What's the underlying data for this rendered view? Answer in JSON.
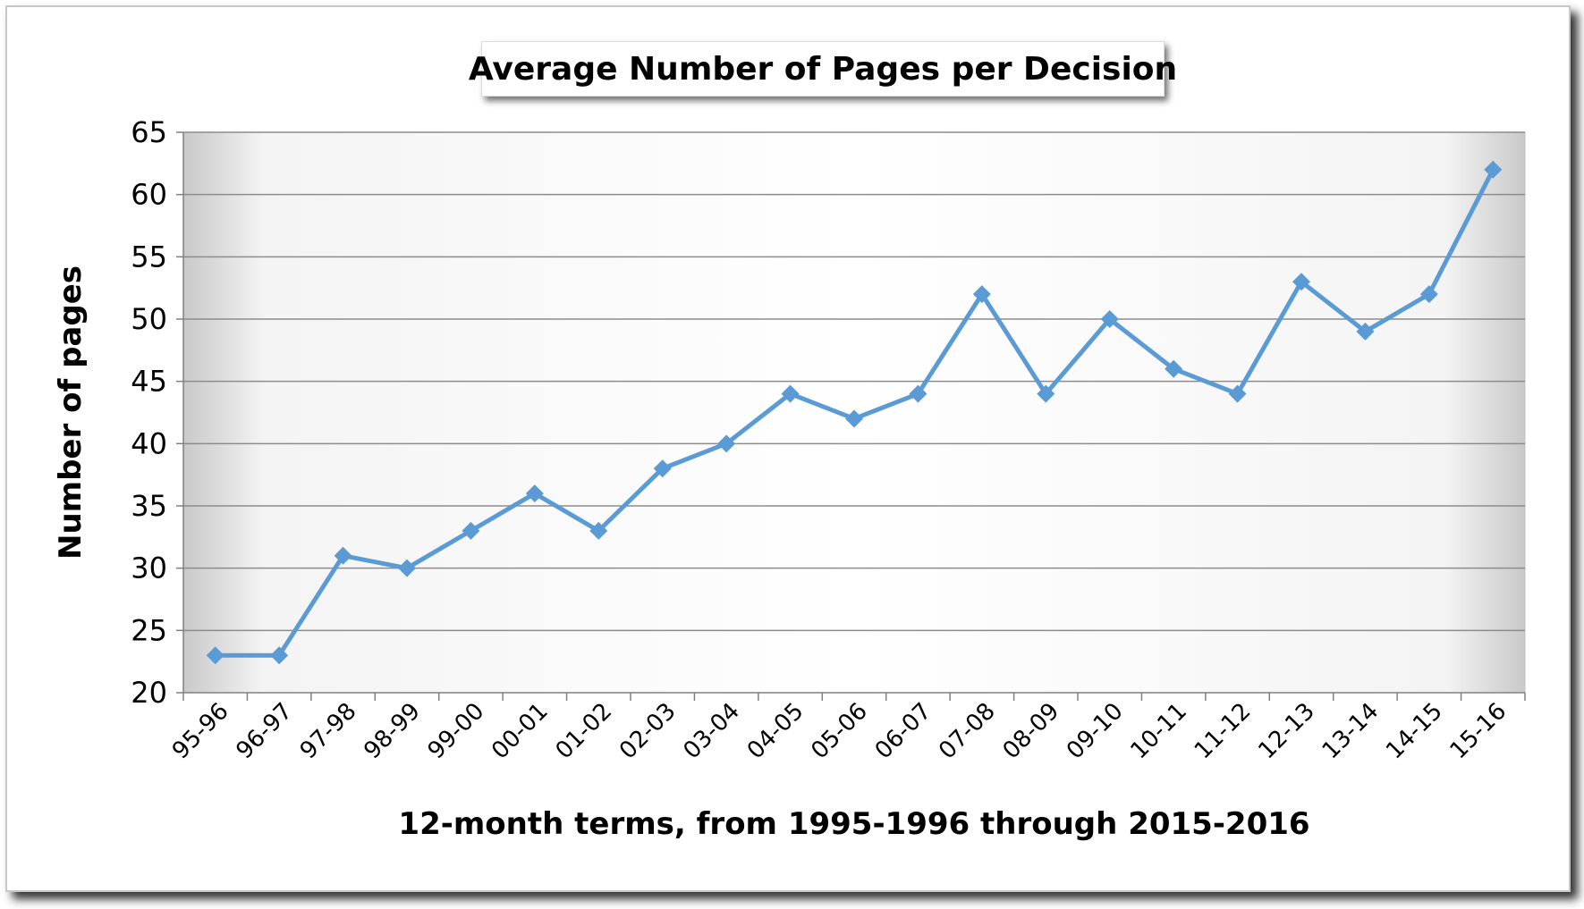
{
  "chart_data": {
    "type": "line",
    "title": "Average Number of Pages per Decision",
    "xlabel": "12-month terms, from 1995-1996 through 2015-2016",
    "ylabel": "Number of pages",
    "categories": [
      "95-96",
      "96-97",
      "97-98",
      "98-99",
      "99-00",
      "00-01",
      "01-02",
      "02-03",
      "03-04",
      "04-05",
      "05-06",
      "06-07",
      "07-08",
      "08-09",
      "09-10",
      "10-11",
      "11-12",
      "12-13",
      "13-14",
      "14-15",
      "15-16"
    ],
    "series": [
      {
        "name": "Average Number of Pages per Decision",
        "values": [
          23,
          23,
          31,
          30,
          33,
          36,
          33,
          38,
          40,
          44,
          42,
          44,
          52,
          44,
          50,
          46,
          44,
          53,
          49,
          52,
          62
        ]
      }
    ],
    "ylim": [
      20,
      65
    ],
    "yticks": [
      20,
      25,
      30,
      35,
      40,
      45,
      50,
      55,
      60,
      65
    ],
    "grid": true,
    "legend": "none",
    "line_color": "#5b9bd5",
    "grid_color": "#8c8c8c"
  }
}
